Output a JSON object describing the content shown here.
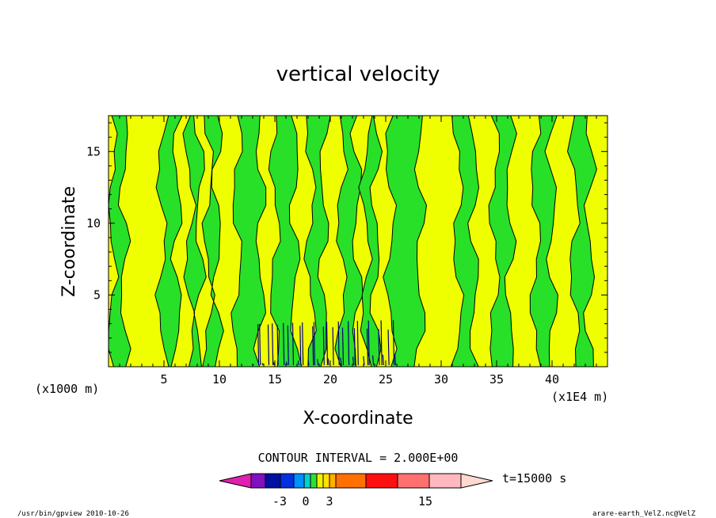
{
  "chart_data": {
    "type": "heatmap",
    "title": "vertical velocity",
    "xlabel": "X-coordinate",
    "ylabel": "Z-coordinate",
    "x_unit_left": "(x1000 m)",
    "x_unit_right": "(x1E4 m)",
    "xlim": [
      0,
      45
    ],
    "ylim": [
      0,
      17.5
    ],
    "xticks": [
      "5",
      "10",
      "15",
      "20",
      "25",
      "30",
      "35",
      "40"
    ],
    "yticks": [
      "5",
      "10",
      "15"
    ],
    "contour_interval": "CONTOUR INTERVAL = 2.000E+00",
    "time_label": "t=15000 s",
    "colorbar_labels": [
      "-3",
      "0",
      "3",
      "15"
    ],
    "colorbar_colors": [
      "#e020b0",
      "#8010c0",
      "#0010a0",
      "#0030e0",
      "#0090ff",
      "#00d0d0",
      "#30e030",
      "#f0f000",
      "#ffe000",
      "#ffb000",
      "#ff7000",
      "#ff1010",
      "#ff7070",
      "#ffb8c0",
      "#ffd8d0"
    ],
    "fill_colors": {
      "low": "#28e028",
      "high": "#f0ff00",
      "negative": "#000080"
    },
    "green_bands_x_ranges": [
      [
        0.3,
        1.4
      ],
      [
        4.8,
        6.2
      ],
      [
        7.3,
        8.2
      ],
      [
        9.0,
        9.8
      ],
      [
        11.6,
        13.7
      ],
      [
        15.0,
        16.8
      ],
      [
        18.2,
        19.4
      ],
      [
        21.0,
        22.4
      ],
      [
        23.2,
        24.1
      ],
      [
        25.4,
        28.1
      ],
      [
        31.5,
        33.0
      ],
      [
        34.8,
        36.2
      ],
      [
        38.5,
        40.0
      ],
      [
        42.0,
        43.4
      ]
    ]
  },
  "footer": {
    "left": "/usr/bin/gpview   2010-10-26",
    "right": "arare-earth_VelZ.nc@VelZ"
  }
}
